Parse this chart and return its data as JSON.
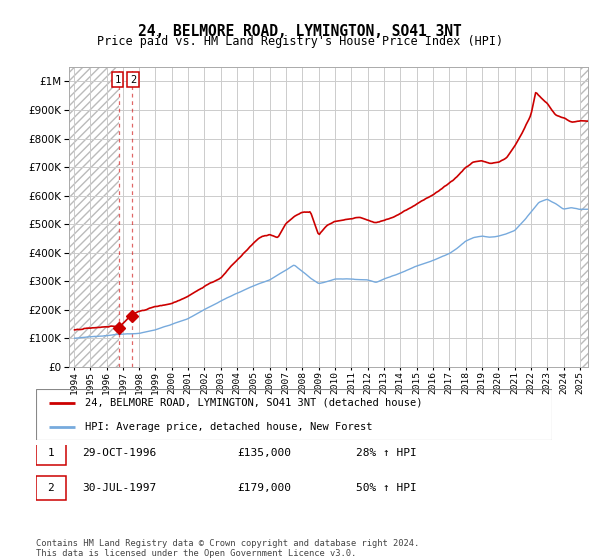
{
  "title": "24, BELMORE ROAD, LYMINGTON, SO41 3NT",
  "subtitle": "Price paid vs. HM Land Registry's House Price Index (HPI)",
  "hpi_label": "HPI: Average price, detached house, New Forest",
  "price_label": "24, BELMORE ROAD, LYMINGTON, SO41 3NT (detached house)",
  "transaction1_date": "29-OCT-1996",
  "transaction1_price": 135000,
  "transaction1_pct": "28% ↑ HPI",
  "transaction2_date": "30-JUL-1997",
  "transaction2_price": 179000,
  "transaction2_pct": "50% ↑ HPI",
  "footer": "Contains HM Land Registry data © Crown copyright and database right 2024.\nThis data is licensed under the Open Government Licence v3.0.",
  "price_color": "#cc0000",
  "hpi_color": "#77aadd",
  "grid_color": "#cccccc",
  "ylim_max": 1050000,
  "ylim_min": 0,
  "xmin": 1993.7,
  "xmax": 2025.5,
  "hatch_end": 1996.75,
  "hatch_start_right": 2025.1
}
